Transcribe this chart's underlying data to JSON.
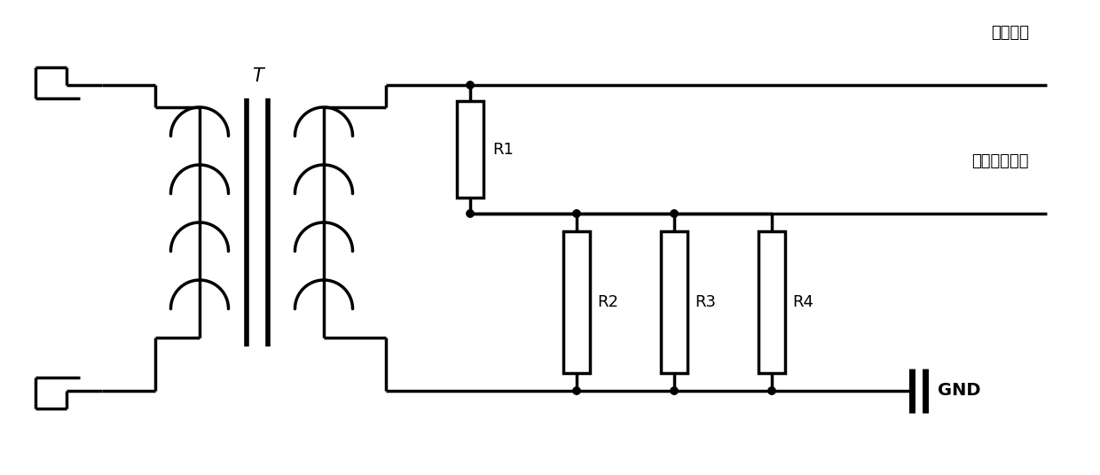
{
  "bg_color": "#ffffff",
  "lc": "#000000",
  "lw": 2.5,
  "lw_core": 4.0,
  "dot_r": 0.42,
  "fig_w": 12.4,
  "fig_h": 5.36,
  "dpi": 100,
  "label_T": "T",
  "label_R1": "R1",
  "label_R2": "R2",
  "label_R3": "R3",
  "label_R4": "R4",
  "label_GND": "GND",
  "label_hv_out": "高压输出",
  "label_hv_div": "高压分压输出",
  "fs_label": 13,
  "fs_T": 15,
  "fs_GND": 14,
  "fs_chinese": 13
}
